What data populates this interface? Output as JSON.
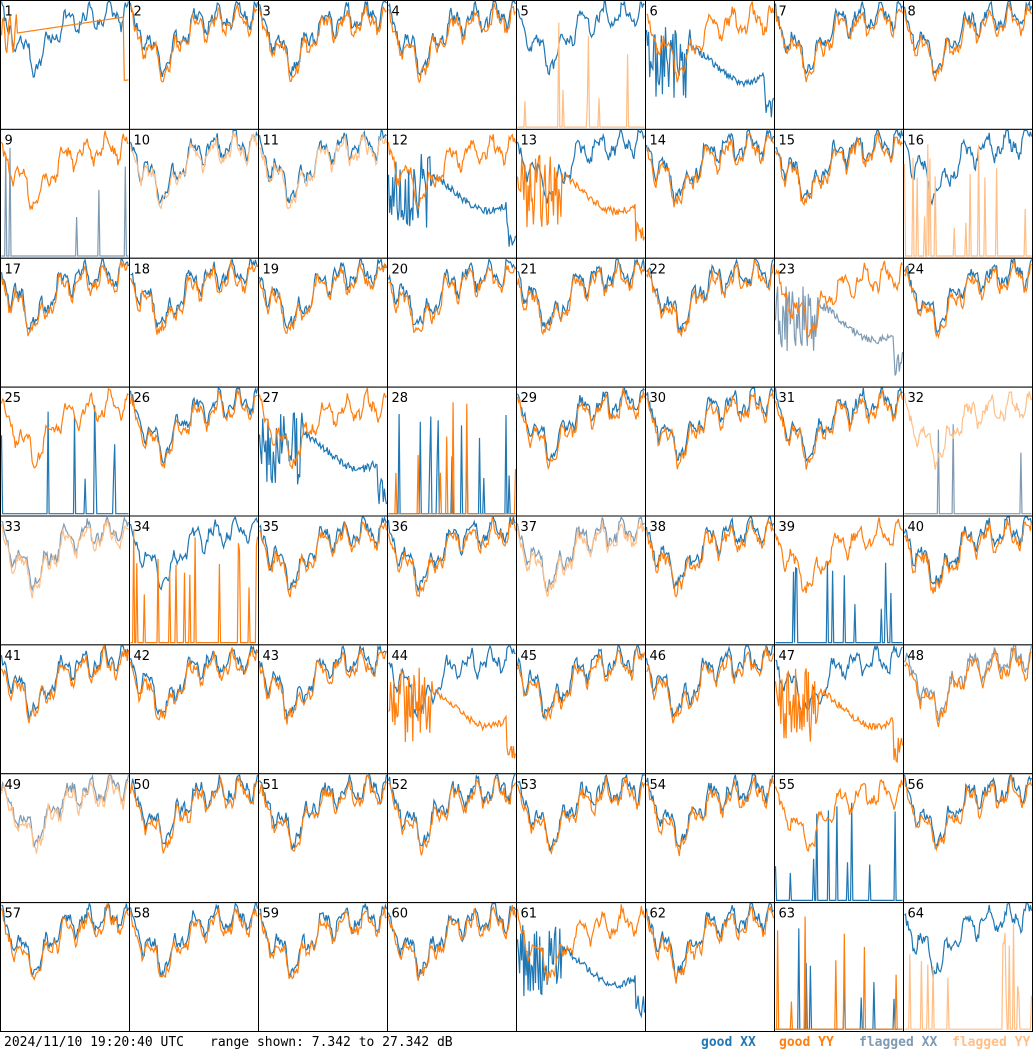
{
  "footer": {
    "timestamp": "2024/11/10 19:20:40 UTC",
    "range_text": "range shown: 7.342 to 27.342 dB"
  },
  "colors": {
    "good_xx": "#1f77b4",
    "good_yy": "#ff7f0e",
    "flagged_xx": "#7f9bb3",
    "flagged_yy": "#ffbf87",
    "frame": "#000000"
  },
  "chart_data": {
    "type": "line",
    "layout": "small-multiples",
    "rows": 8,
    "cols": 8,
    "ylim": [
      7.342,
      27.342
    ],
    "unit": "dB",
    "legend": [
      {
        "key": "good_xx",
        "label": "good XX"
      },
      {
        "key": "good_yy",
        "label": "good YY"
      },
      {
        "key": "flagged_xx",
        "label": "flagged XX"
      },
      {
        "key": "flagged_yy",
        "label": "flagged YY"
      }
    ],
    "panels": [
      {
        "id": "1",
        "xx": "good",
        "yy": "good",
        "pattern": {
          "yy": "smooth"
        }
      },
      {
        "id": "2",
        "xx": "good",
        "yy": "good",
        "pattern": {}
      },
      {
        "id": "3",
        "xx": "good",
        "yy": "good",
        "pattern": {}
      },
      {
        "id": "4",
        "xx": "good",
        "yy": "good",
        "pattern": {}
      },
      {
        "id": "5",
        "xx": "good",
        "yy": "flagged",
        "pattern": {
          "yy": "spikes"
        }
      },
      {
        "id": "6",
        "xx": "good",
        "yy": "good",
        "pattern": {
          "xx": "noisy"
        }
      },
      {
        "id": "7",
        "xx": "good",
        "yy": "good",
        "pattern": {}
      },
      {
        "id": "8",
        "xx": "good",
        "yy": "good",
        "pattern": {}
      },
      {
        "id": "9",
        "xx": "flagged",
        "yy": "good",
        "pattern": {
          "xx": "spikes"
        }
      },
      {
        "id": "10",
        "xx": "good",
        "yy": "flagged",
        "pattern": {}
      },
      {
        "id": "11",
        "xx": "good",
        "yy": "flagged",
        "pattern": {}
      },
      {
        "id": "12",
        "xx": "good",
        "yy": "good",
        "pattern": {
          "xx": "noisy"
        }
      },
      {
        "id": "13",
        "xx": "good",
        "yy": "good",
        "pattern": {
          "yy": "noisy"
        }
      },
      {
        "id": "14",
        "xx": "good",
        "yy": "good",
        "pattern": {}
      },
      {
        "id": "15",
        "xx": "good",
        "yy": "good",
        "pattern": {}
      },
      {
        "id": "16",
        "xx": "good",
        "yy": "flagged",
        "pattern": {
          "yy": "spikes"
        }
      },
      {
        "id": "17",
        "xx": "good",
        "yy": "good",
        "pattern": {}
      },
      {
        "id": "18",
        "xx": "good",
        "yy": "good",
        "pattern": {}
      },
      {
        "id": "19",
        "xx": "good",
        "yy": "good",
        "pattern": {}
      },
      {
        "id": "20",
        "xx": "good",
        "yy": "good",
        "pattern": {}
      },
      {
        "id": "21",
        "xx": "good",
        "yy": "good",
        "pattern": {}
      },
      {
        "id": "22",
        "xx": "good",
        "yy": "good",
        "pattern": {}
      },
      {
        "id": "23",
        "xx": "flagged",
        "yy": "good",
        "pattern": {
          "xx": "noisy"
        }
      },
      {
        "id": "24",
        "xx": "good",
        "yy": "good",
        "pattern": {}
      },
      {
        "id": "25",
        "xx": "good",
        "yy": "good",
        "pattern": {
          "xx": "spikes"
        }
      },
      {
        "id": "26",
        "xx": "good",
        "yy": "good",
        "pattern": {}
      },
      {
        "id": "27",
        "xx": "good",
        "yy": "good",
        "pattern": {
          "xx": "noisy"
        }
      },
      {
        "id": "28",
        "xx": "good",
        "yy": "good",
        "pattern": {
          "xx": "spikes",
          "yy": "spikes"
        }
      },
      {
        "id": "29",
        "xx": "good",
        "yy": "good",
        "pattern": {}
      },
      {
        "id": "30",
        "xx": "good",
        "yy": "good",
        "pattern": {}
      },
      {
        "id": "31",
        "xx": "good",
        "yy": "good",
        "pattern": {}
      },
      {
        "id": "32",
        "xx": "flagged",
        "yy": "flagged",
        "pattern": {
          "xx": "spikes"
        }
      },
      {
        "id": "33",
        "xx": "flagged",
        "yy": "flagged",
        "pattern": {}
      },
      {
        "id": "34",
        "xx": "good",
        "yy": "good",
        "pattern": {
          "yy": "spikes"
        }
      },
      {
        "id": "35",
        "xx": "good",
        "yy": "good",
        "pattern": {}
      },
      {
        "id": "36",
        "xx": "good",
        "yy": "good",
        "pattern": {}
      },
      {
        "id": "37",
        "xx": "flagged",
        "yy": "flagged",
        "pattern": {}
      },
      {
        "id": "38",
        "xx": "good",
        "yy": "good",
        "pattern": {}
      },
      {
        "id": "39",
        "xx": "good",
        "yy": "good",
        "pattern": {
          "xx": "spikes"
        }
      },
      {
        "id": "40",
        "xx": "good",
        "yy": "good",
        "pattern": {}
      },
      {
        "id": "41",
        "xx": "good",
        "yy": "good",
        "pattern": {}
      },
      {
        "id": "42",
        "xx": "good",
        "yy": "good",
        "pattern": {}
      },
      {
        "id": "43",
        "xx": "good",
        "yy": "good",
        "pattern": {}
      },
      {
        "id": "44",
        "xx": "good",
        "yy": "good",
        "pattern": {
          "yy": "noisy"
        }
      },
      {
        "id": "45",
        "xx": "good",
        "yy": "good",
        "pattern": {}
      },
      {
        "id": "46",
        "xx": "good",
        "yy": "good",
        "pattern": {}
      },
      {
        "id": "47",
        "xx": "good",
        "yy": "good",
        "pattern": {
          "yy": "noisy"
        }
      },
      {
        "id": "48",
        "xx": "flagged",
        "yy": "good",
        "pattern": {}
      },
      {
        "id": "49",
        "xx": "flagged",
        "yy": "flagged",
        "pattern": {}
      },
      {
        "id": "50",
        "xx": "good",
        "yy": "good",
        "pattern": {}
      },
      {
        "id": "51",
        "xx": "good",
        "yy": "good",
        "pattern": {}
      },
      {
        "id": "52",
        "xx": "good",
        "yy": "good",
        "pattern": {}
      },
      {
        "id": "53",
        "xx": "good",
        "yy": "good",
        "pattern": {}
      },
      {
        "id": "54",
        "xx": "good",
        "yy": "good",
        "pattern": {}
      },
      {
        "id": "55",
        "xx": "good",
        "yy": "good",
        "pattern": {
          "xx": "spikes"
        }
      },
      {
        "id": "56",
        "xx": "good",
        "yy": "good",
        "pattern": {}
      },
      {
        "id": "57",
        "xx": "good",
        "yy": "good",
        "pattern": {}
      },
      {
        "id": "58",
        "xx": "good",
        "yy": "good",
        "pattern": {}
      },
      {
        "id": "59",
        "xx": "good",
        "yy": "good",
        "pattern": {}
      },
      {
        "id": "60",
        "xx": "good",
        "yy": "good",
        "pattern": {}
      },
      {
        "id": "61",
        "xx": "good",
        "yy": "good",
        "pattern": {
          "xx": "noisy"
        }
      },
      {
        "id": "62",
        "xx": "good",
        "yy": "good",
        "pattern": {}
      },
      {
        "id": "63",
        "xx": "good",
        "yy": "good",
        "pattern": {
          "xx": "spikes",
          "yy": "spikes"
        }
      },
      {
        "id": "64",
        "xx": "good",
        "yy": "flagged",
        "pattern": {
          "yy": "spikes"
        }
      }
    ]
  }
}
